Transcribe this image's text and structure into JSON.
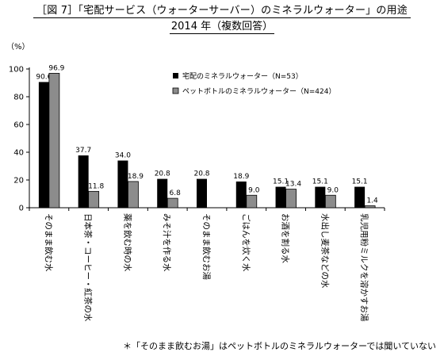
{
  "title": "［図 7］「宅配サービス（ウォーターサーバー）のミネラルウォーター」の用途",
  "subtitle": "2014 年（複数回答）",
  "ylabel": "（%）",
  "note": "＊「そのまま飲むお湯」はペットボトルのミネラルウォーターでは聞いていない",
  "colors": {
    "series1": "#000000",
    "series2": "#8c8c8c"
  },
  "chart_data": {
    "type": "bar",
    "categories": [
      "そのまま飲む水",
      "日本茶・コーヒー・紅茶の水",
      "薬を飲む時の水",
      "みそ汁を作る水",
      "そのまま飲むお湯",
      "ごはんを炊く水",
      "お酒を割る水",
      "水出し麦茶などの水",
      "乳児用粉ミルクを溶かすお湯"
    ],
    "series": [
      {
        "name": "宅配のミネラルウォーター（N=53）",
        "values": [
          90.6,
          37.7,
          34.0,
          20.8,
          20.8,
          18.9,
          15.1,
          15.1,
          15.1
        ],
        "labels": [
          "90.6",
          "37.7",
          "34.0",
          "20.8",
          "20.8",
          "18.9",
          "15.1",
          "15.1",
          "15.1"
        ]
      },
      {
        "name": "ペットボトルのミネラルウォーター（N=424）",
        "values": [
          96.9,
          11.8,
          18.9,
          6.8,
          null,
          9.0,
          13.4,
          9.0,
          1.4
        ],
        "labels": [
          "96.9",
          "11.8",
          "18.9",
          "6.8",
          "",
          "9.0",
          "13.4",
          "9.0",
          "1.4"
        ]
      }
    ],
    "ylim": [
      0,
      100
    ],
    "yticks": [
      0,
      20,
      40,
      60,
      80,
      100
    ],
    "grid": false,
    "legend": "top-right"
  }
}
